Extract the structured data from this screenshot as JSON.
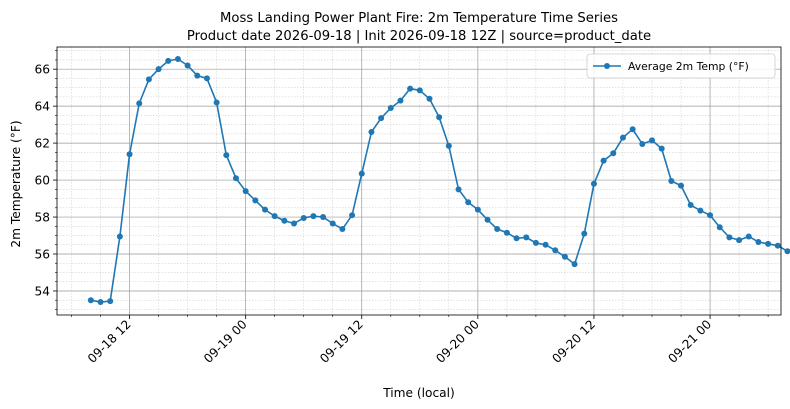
{
  "chart_data": {
    "type": "line",
    "title": "Moss Landing Power Plant Fire: 2m Temperature Time Series",
    "subtitle": "Product date 2026-09-18 | Init 2026-09-18 12Z | source=product_date",
    "xlabel": "Time (local)",
    "ylabel": "2m Temperature (°F)",
    "xlim": [
      "2026-09-18 04:30",
      "2026-09-21 07:20"
    ],
    "ylim": [
      52.7,
      67.2
    ],
    "x_ticks": [
      "09-18 12",
      "09-19 00",
      "09-19 12",
      "09-20 00",
      "09-20 12",
      "09-21 00"
    ],
    "y_ticks": [
      54,
      56,
      58,
      60,
      62,
      64,
      66
    ],
    "grid": true,
    "minor_grid": true,
    "legend_position": "top-right",
    "series": [
      {
        "name": "Average 2m Temp (°F)",
        "color": "#1f77b4",
        "marker": "circle",
        "points": [
          [
            "2026-09-18 08:00",
            53.5
          ],
          [
            "2026-09-18 09:00",
            53.4
          ],
          [
            "2026-09-18 10:00",
            53.45
          ],
          [
            "2026-09-18 11:00",
            56.95
          ],
          [
            "2026-09-18 12:00",
            61.4
          ],
          [
            "2026-09-18 13:00",
            64.15
          ],
          [
            "2026-09-18 14:00",
            65.45
          ],
          [
            "2026-09-18 15:00",
            66.0
          ],
          [
            "2026-09-18 16:00",
            66.45
          ],
          [
            "2026-09-18 17:00",
            66.55
          ],
          [
            "2026-09-18 18:00",
            66.2
          ],
          [
            "2026-09-18 19:00",
            65.65
          ],
          [
            "2026-09-18 20:00",
            65.5
          ],
          [
            "2026-09-18 21:00",
            64.2
          ],
          [
            "2026-09-18 22:00",
            61.35
          ],
          [
            "2026-09-18 23:00",
            60.1
          ],
          [
            "2026-09-19 00:00",
            59.4
          ],
          [
            "2026-09-19 01:00",
            58.9
          ],
          [
            "2026-09-19 02:00",
            58.4
          ],
          [
            "2026-09-19 03:00",
            58.05
          ],
          [
            "2026-09-19 04:00",
            57.8
          ],
          [
            "2026-09-19 05:00",
            57.65
          ],
          [
            "2026-09-19 06:00",
            57.95
          ],
          [
            "2026-09-19 07:00",
            58.05
          ],
          [
            "2026-09-19 08:00",
            58.0
          ],
          [
            "2026-09-19 09:00",
            57.65
          ],
          [
            "2026-09-19 10:00",
            57.35
          ],
          [
            "2026-09-19 11:00",
            58.1
          ],
          [
            "2026-09-19 12:00",
            60.35
          ],
          [
            "2026-09-19 13:00",
            62.6
          ],
          [
            "2026-09-19 14:00",
            63.35
          ],
          [
            "2026-09-19 15:00",
            63.9
          ],
          [
            "2026-09-19 16:00",
            64.3
          ],
          [
            "2026-09-19 17:00",
            64.95
          ],
          [
            "2026-09-19 18:00",
            64.85
          ],
          [
            "2026-09-19 19:00",
            64.4
          ],
          [
            "2026-09-19 20:00",
            63.4
          ],
          [
            "2026-09-19 21:00",
            61.85
          ],
          [
            "2026-09-19 22:00",
            59.5
          ],
          [
            "2026-09-19 23:00",
            58.8
          ],
          [
            "2026-09-20 00:00",
            58.4
          ],
          [
            "2026-09-20 01:00",
            57.85
          ],
          [
            "2026-09-20 02:00",
            57.35
          ],
          [
            "2026-09-20 03:00",
            57.15
          ],
          [
            "2026-09-20 04:00",
            56.85
          ],
          [
            "2026-09-20 05:00",
            56.9
          ],
          [
            "2026-09-20 06:00",
            56.6
          ],
          [
            "2026-09-20 07:00",
            56.5
          ],
          [
            "2026-09-20 08:00",
            56.2
          ],
          [
            "2026-09-20 09:00",
            55.85
          ],
          [
            "2026-09-20 10:00",
            55.45
          ],
          [
            "2026-09-20 11:00",
            57.1
          ],
          [
            "2026-09-20 12:00",
            59.8
          ],
          [
            "2026-09-20 13:00",
            61.05
          ],
          [
            "2026-09-20 14:00",
            61.45
          ],
          [
            "2026-09-20 15:00",
            62.3
          ],
          [
            "2026-09-20 16:00",
            62.75
          ],
          [
            "2026-09-20 17:00",
            61.95
          ],
          [
            "2026-09-20 18:00",
            62.15
          ],
          [
            "2026-09-20 19:00",
            61.7
          ],
          [
            "2026-09-20 20:00",
            59.95
          ],
          [
            "2026-09-20 21:00",
            59.7
          ],
          [
            "2026-09-20 22:00",
            58.65
          ],
          [
            "2026-09-20 23:00",
            58.35
          ],
          [
            "2026-09-21 00:00",
            58.1
          ],
          [
            "2026-09-21 01:00",
            57.45
          ],
          [
            "2026-09-21 02:00",
            56.9
          ],
          [
            "2026-09-21 03:00",
            56.75
          ],
          [
            "2026-09-21 04:00",
            56.95
          ],
          [
            "2026-09-21 05:00",
            56.65
          ],
          [
            "2026-09-21 06:00",
            56.55
          ],
          [
            "2026-09-21 07:00",
            56.45
          ],
          [
            "2026-09-21 08:00",
            56.15
          ]
        ]
      }
    ]
  }
}
